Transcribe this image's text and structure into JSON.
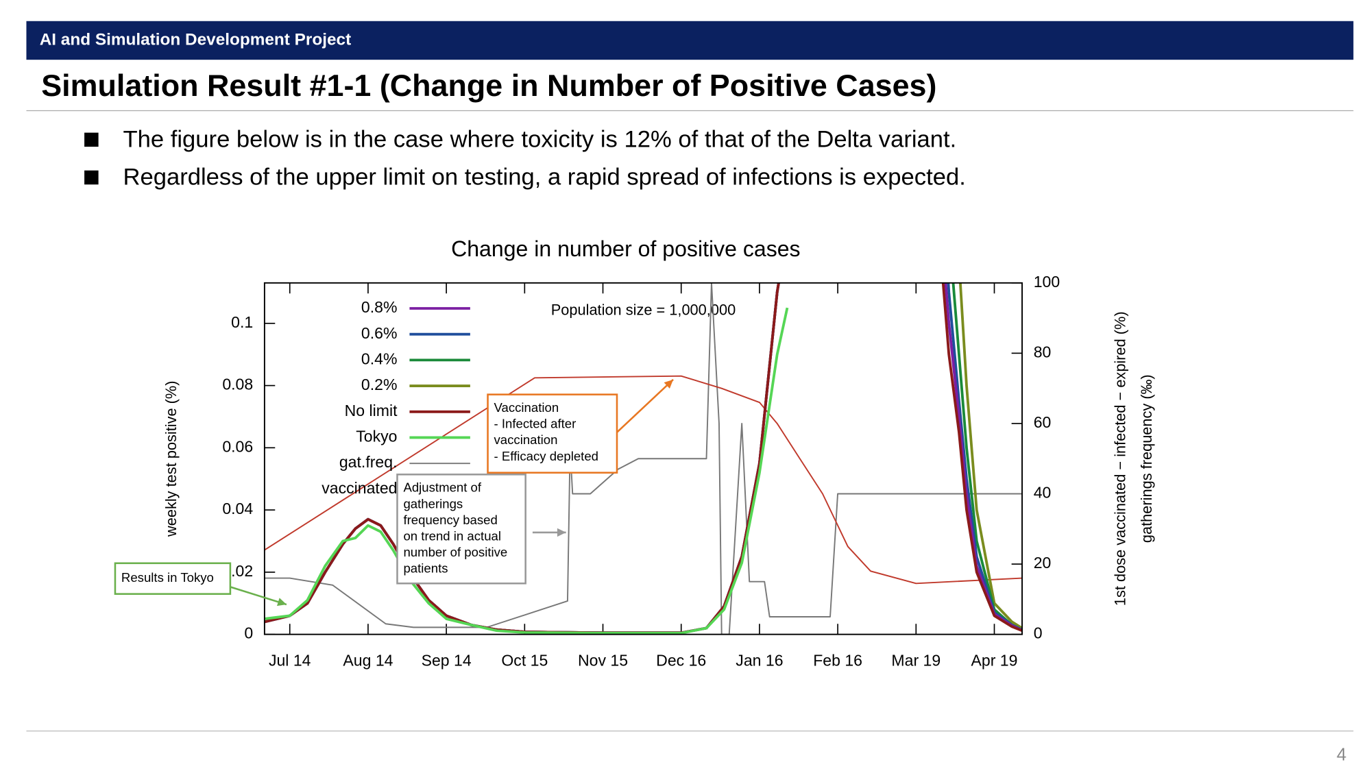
{
  "header": {
    "project": "AI and Simulation Development Project",
    "title": "Simulation Result #1-1 (Change in Number of Positive Cases)"
  },
  "bullets": [
    "The figure below is in the case where toxicity is 12% of that of the Delta variant.",
    "Regardless of the upper limit on testing, a rapid spread of infections is expected."
  ],
  "page_number": 4,
  "chart_data": {
    "type": "line",
    "title": "Change in number of positive cases",
    "ylabel": "weekly test positive (%)",
    "y2label": [
      "1st dose vaccinated − infected − expired (%)",
      "gatherings frequency (‰)"
    ],
    "population_note": "Population size = 1,000,000",
    "annotations": [
      {
        "lines": [
          "Vaccination",
          "- Infected after",
          "vaccination",
          "- Efficacy depleted"
        ],
        "color": "#e87722"
      },
      {
        "lines": [
          "Adjustment of",
          "gatherings",
          "frequency based",
          "on trend in actual",
          "number of positive",
          "patients"
        ],
        "color": "#999999"
      },
      {
        "lines": [
          "Results in Tokyo"
        ],
        "color": "#6ab04c"
      }
    ],
    "xlim": [
      "Jul 4",
      "Apr 30"
    ],
    "xticks": [
      "Jul 14",
      "Aug 14",
      "Sep 14",
      "Oct 15",
      "Nov 15",
      "Dec 16",
      "Jan 16",
      "Feb 16",
      "Mar 19",
      "Apr 19"
    ],
    "ylim": [
      0,
      0.113
    ],
    "yticks": [
      0,
      0.02,
      0.04,
      0.06,
      0.08,
      0.1
    ],
    "y2lim": [
      0,
      100
    ],
    "y2ticks": [
      0,
      20,
      40,
      60,
      80,
      100
    ],
    "series": [
      {
        "name": "0.8%",
        "color": "#7b1fa2",
        "x": [
          "Jul 4",
          "Jul 14",
          "Jul 21",
          "Jul 28",
          "Aug 4",
          "Aug 9",
          "Aug 14",
          "Aug 19",
          "Aug 24",
          "Aug 31",
          "Sep 7",
          "Sep 14",
          "Sep 24",
          "Oct 4",
          "Oct 15",
          "Nov 15",
          "Dec 16",
          "Dec 26",
          "Jan 2",
          "Jan 9",
          "Jan 16",
          "Jan 23",
          "Jan 27",
          "Mar 26",
          "Mar 29",
          "Apr 1",
          "Apr 5",
          "Apr 8",
          "Apr 12",
          "Apr 19",
          "Apr 26",
          "Apr 30"
        ],
        "values": [
          0.004,
          0.006,
          0.01,
          0.02,
          0.029,
          0.034,
          0.037,
          0.035,
          0.029,
          0.019,
          0.011,
          0.006,
          0.003,
          0.0015,
          0.0008,
          0.0005,
          0.0005,
          0.002,
          0.009,
          0.025,
          0.055,
          0.11,
          0.13,
          null,
          0.13,
          0.1,
          0.07,
          0.045,
          0.022,
          0.0065,
          0.0028,
          0.0013
        ]
      },
      {
        "name": "0.6%",
        "color": "#1f4e9c",
        "x": [
          "Jul 4",
          "Jul 14",
          "Jul 21",
          "Jul 28",
          "Aug 4",
          "Aug 9",
          "Aug 14",
          "Aug 19",
          "Aug 24",
          "Aug 31",
          "Sep 7",
          "Sep 14",
          "Sep 24",
          "Oct 4",
          "Oct 15",
          "Nov 15",
          "Dec 16",
          "Dec 26",
          "Jan 2",
          "Jan 9",
          "Jan 16",
          "Jan 23",
          "Jan 27",
          "Mar 26",
          "Mar 29",
          "Apr 1",
          "Apr 5",
          "Apr 8",
          "Apr 12",
          "Apr 19",
          "Apr 26",
          "Apr 30"
        ],
        "values": [
          0.004,
          0.006,
          0.01,
          0.02,
          0.029,
          0.034,
          0.037,
          0.035,
          0.029,
          0.019,
          0.011,
          0.006,
          0.003,
          0.0015,
          0.0008,
          0.0005,
          0.0005,
          0.002,
          0.009,
          0.025,
          0.055,
          0.11,
          0.13,
          null,
          0.15,
          0.11,
          0.075,
          0.05,
          0.025,
          0.007,
          0.003,
          0.0014
        ]
      },
      {
        "name": "0.4%",
        "color": "#1a8a3a",
        "x": [
          "Jul 4",
          "Jul 14",
          "Jul 21",
          "Jul 28",
          "Aug 4",
          "Aug 9",
          "Aug 14",
          "Aug 19",
          "Aug 24",
          "Aug 31",
          "Sep 7",
          "Sep 14",
          "Sep 24",
          "Oct 4",
          "Oct 15",
          "Nov 15",
          "Dec 16",
          "Dec 26",
          "Jan 2",
          "Jan 9",
          "Jan 16",
          "Jan 23",
          "Jan 27",
          "Mar 26",
          "Mar 29",
          "Apr 1",
          "Apr 5",
          "Apr 8",
          "Apr 12",
          "Apr 19",
          "Apr 26",
          "Apr 30"
        ],
        "values": [
          0.004,
          0.006,
          0.01,
          0.02,
          0.029,
          0.034,
          0.037,
          0.035,
          0.029,
          0.019,
          0.011,
          0.006,
          0.003,
          0.0015,
          0.0008,
          0.0005,
          0.0005,
          0.002,
          0.009,
          0.025,
          0.055,
          0.11,
          0.13,
          null,
          0.18,
          0.13,
          0.09,
          0.06,
          0.03,
          0.008,
          0.003,
          0.0015
        ]
      },
      {
        "name": "0.2%",
        "color": "#7a8c1e",
        "x": [
          "Jul 4",
          "Jul 14",
          "Jul 21",
          "Jul 28",
          "Aug 4",
          "Aug 9",
          "Aug 14",
          "Aug 19",
          "Aug 24",
          "Aug 31",
          "Sep 7",
          "Sep 14",
          "Sep 24",
          "Oct 4",
          "Oct 15",
          "Nov 15",
          "Dec 16",
          "Dec 26",
          "Jan 2",
          "Jan 9",
          "Jan 16",
          "Jan 23",
          "Jan 27",
          "Mar 26",
          "Mar 29",
          "Apr 1",
          "Apr 5",
          "Apr 8",
          "Apr 12",
          "Apr 19",
          "Apr 26",
          "Apr 30"
        ],
        "values": [
          0.004,
          0.006,
          0.01,
          0.02,
          0.029,
          0.034,
          0.037,
          0.035,
          0.029,
          0.019,
          0.011,
          0.006,
          0.003,
          0.0015,
          0.0008,
          0.0005,
          0.0005,
          0.002,
          0.009,
          0.025,
          0.055,
          0.11,
          0.13,
          null,
          0.25,
          0.18,
          0.12,
          0.08,
          0.04,
          0.01,
          0.004,
          0.002
        ]
      },
      {
        "name": "No limit",
        "color": "#8b1a1a",
        "x": [
          "Jul 4",
          "Jul 14",
          "Jul 21",
          "Jul 28",
          "Aug 4",
          "Aug 9",
          "Aug 14",
          "Aug 19",
          "Aug 24",
          "Aug 31",
          "Sep 7",
          "Sep 14",
          "Sep 24",
          "Oct 4",
          "Oct 15",
          "Nov 15",
          "Dec 16",
          "Dec 26",
          "Jan 2",
          "Jan 9",
          "Jan 16",
          "Jan 23",
          "Jan 27",
          "Mar 26",
          "Mar 29",
          "Apr 1",
          "Apr 5",
          "Apr 8",
          "Apr 12",
          "Apr 19",
          "Apr 26",
          "Apr 30"
        ],
        "values": [
          0.004,
          0.006,
          0.01,
          0.02,
          0.029,
          0.034,
          0.037,
          0.035,
          0.029,
          0.019,
          0.011,
          0.006,
          0.003,
          0.0015,
          0.0008,
          0.0005,
          0.0005,
          0.002,
          0.009,
          0.025,
          0.055,
          0.11,
          0.13,
          null,
          0.12,
          0.09,
          0.065,
          0.04,
          0.02,
          0.006,
          0.0025,
          0.0012
        ]
      },
      {
        "name": "Tokyo",
        "color": "#55d655",
        "x": [
          "Jul 4",
          "Jul 14",
          "Jul 21",
          "Jul 28",
          "Aug 4",
          "Aug 9",
          "Aug 14",
          "Aug 19",
          "Aug 24",
          "Aug 31",
          "Sep 7",
          "Sep 14",
          "Sep 24",
          "Oct 4",
          "Oct 15",
          "Nov 15",
          "Dec 16",
          "Dec 26",
          "Jan 2",
          "Jan 9",
          "Jan 16",
          "Jan 23",
          "Jan 27"
        ],
        "values": [
          0.005,
          0.006,
          0.011,
          0.022,
          0.03,
          0.031,
          0.035,
          0.033,
          0.027,
          0.017,
          0.01,
          0.005,
          0.003,
          0.0012,
          0.0006,
          0.0004,
          0.0004,
          0.002,
          0.008,
          0.023,
          0.052,
          0.09,
          0.105
        ]
      },
      {
        "name": "gat.freq.",
        "color": "#777777",
        "axis": "y2",
        "x": [
          "Jul 4",
          "Jul 14",
          "Jul 31",
          "Aug 21",
          "Sep 1",
          "Sep 30",
          "Nov 1",
          "Nov 2",
          "Nov 3",
          "Nov 10",
          "Nov 21",
          "Nov 29",
          "Dec 26",
          "Dec 28",
          "Dec 31",
          "Jan 1",
          "Jan 4",
          "Jan 9",
          "Jan 12",
          "Jan 18",
          "Jan 20",
          "Feb 13",
          "Feb 16",
          "Apr 30"
        ],
        "values": [
          16,
          16,
          14,
          3,
          2,
          2,
          9.5,
          53,
          40,
          40,
          47,
          50,
          50,
          100,
          60,
          0,
          0,
          60,
          15,
          15,
          5,
          5,
          40,
          40
        ]
      },
      {
        "name": "vaccinated",
        "color": "#c0392b",
        "axis": "y2",
        "x": [
          "Jul 4",
          "Oct 19",
          "Dec 16",
          "Jan 1",
          "Jan 16",
          "Jan 23",
          "Feb 1",
          "Feb 10",
          "Feb 20",
          "Mar 1",
          "Mar 19",
          "Apr 30"
        ],
        "values": [
          24,
          73,
          73.5,
          70,
          66,
          60,
          50,
          40,
          25,
          18,
          14.5,
          16
        ]
      }
    ]
  }
}
